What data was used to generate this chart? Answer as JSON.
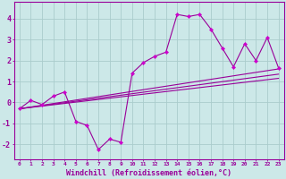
{
  "bg_color": "#cce8e8",
  "line_color": "#990099",
  "marker_color": "#cc00cc",
  "grid_color": "#aacccc",
  "xlabel": "Windchill (Refroidissement éolien,°C)",
  "xlabel_fontsize": 6.0,
  "xtick_labels": [
    "0",
    "1",
    "2",
    "3",
    "4",
    "5",
    "6",
    "7",
    "8",
    "9",
    "10",
    "11",
    "12",
    "13",
    "14",
    "15",
    "16",
    "17",
    "18",
    "19",
    "20",
    "21",
    "22",
    "23"
  ],
  "ylim": [
    -2.7,
    4.8
  ],
  "xlim": [
    -0.5,
    23.5
  ],
  "yticks": [
    -2,
    -1,
    0,
    1,
    2,
    3,
    4
  ],
  "data_x": [
    0,
    1,
    2,
    3,
    4,
    5,
    6,
    7,
    8,
    9,
    10,
    11,
    12,
    13,
    14,
    15,
    16,
    17,
    18,
    19,
    20,
    21,
    22,
    23
  ],
  "data_y": [
    -0.3,
    0.1,
    -0.1,
    0.3,
    0.5,
    -0.9,
    -1.1,
    -2.25,
    -1.75,
    -1.9,
    1.4,
    1.9,
    2.2,
    2.4,
    4.2,
    4.1,
    4.2,
    3.5,
    2.6,
    1.7,
    2.8,
    2.0,
    3.1,
    1.65
  ],
  "trend1_x": [
    0,
    23
  ],
  "trend1_y": [
    -0.3,
    1.6
  ],
  "trend2_x": [
    0,
    23
  ],
  "trend2_y": [
    -0.3,
    1.15
  ],
  "trend3_x": [
    0,
    23
  ],
  "trend3_y": [
    -0.3,
    1.35
  ]
}
